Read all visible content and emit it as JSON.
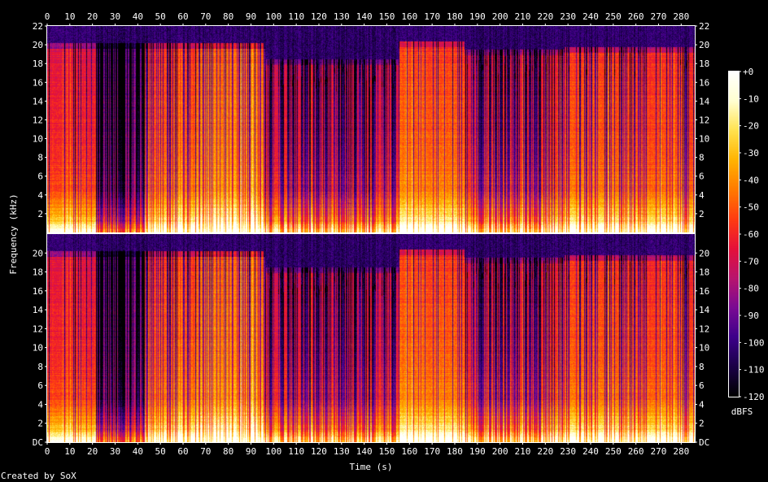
{
  "chart_data": {
    "type": "heatmap",
    "title": "",
    "xlabel": "Time (s)",
    "ylabel": "Frequency (kHz)",
    "xlim": [
      0,
      286
    ],
    "ylim_khz": [
      0,
      22
    ],
    "x_ticks": [
      "0",
      "10",
      "20",
      "30",
      "40",
      "50",
      "60",
      "70",
      "80",
      "90",
      "100",
      "110",
      "120",
      "130",
      "140",
      "150",
      "160",
      "170",
      "180",
      "190",
      "200",
      "210",
      "220",
      "230",
      "240",
      "250",
      "260",
      "270",
      "280"
    ],
    "y_ticks_top_channel": [
      "2",
      "4",
      "6",
      "8",
      "10",
      "12",
      "14",
      "16",
      "18",
      "20",
      "22"
    ],
    "y_ticks_bottom_channel": [
      "DC",
      "2",
      "4",
      "6",
      "8",
      "10",
      "12",
      "14",
      "16",
      "18",
      "20"
    ],
    "channels": [
      "Channel 1",
      "Channel 2"
    ],
    "colorbar": {
      "label": "dBFS",
      "ticks": [
        "+0",
        "-10",
        "-20",
        "-30",
        "-40",
        "-50",
        "-60",
        "-70",
        "-80",
        "-90",
        "-100",
        "-110",
        "-120"
      ],
      "range": [
        -120,
        0
      ]
    },
    "footer": "Created by SoX",
    "regions": [
      {
        "t0": 0,
        "t1": 21.5,
        "level": 0.58,
        "cutoff_khz": 20.2,
        "density": 0.2
      },
      {
        "t0": 21.5,
        "t1": 43,
        "level": 0.38,
        "cutoff_khz": 20.2,
        "density": 0.75
      },
      {
        "t0": 43,
        "t1": 66,
        "level": 0.66,
        "cutoff_khz": 20.2,
        "density": 0.35
      },
      {
        "t0": 66,
        "t1": 96,
        "level": 0.74,
        "cutoff_khz": 20.2,
        "density": 0.35
      },
      {
        "t0": 96,
        "t1": 155,
        "level": 0.55,
        "cutoff_khz": 18.5,
        "density": 0.6
      },
      {
        "t0": 155,
        "t1": 184,
        "level": 0.68,
        "cutoff_khz": 20.4,
        "density": 0.12
      },
      {
        "t0": 184,
        "t1": 228,
        "level": 0.58,
        "cutoff_khz": 19.5,
        "density": 0.55
      },
      {
        "t0": 228,
        "t1": 252,
        "level": 0.66,
        "cutoff_khz": 19.8,
        "density": 0.3
      },
      {
        "t0": 252,
        "t1": 286,
        "level": 0.64,
        "cutoff_khz": 19.8,
        "density": 0.35
      }
    ],
    "colors": [
      "#000000",
      "#1a0046",
      "#3d008a",
      "#7a0a93",
      "#b8146e",
      "#e5103a",
      "#ff3c12",
      "#ff7a00",
      "#ffb300",
      "#ffe24d",
      "#ffffd0",
      "#ffffff"
    ]
  }
}
